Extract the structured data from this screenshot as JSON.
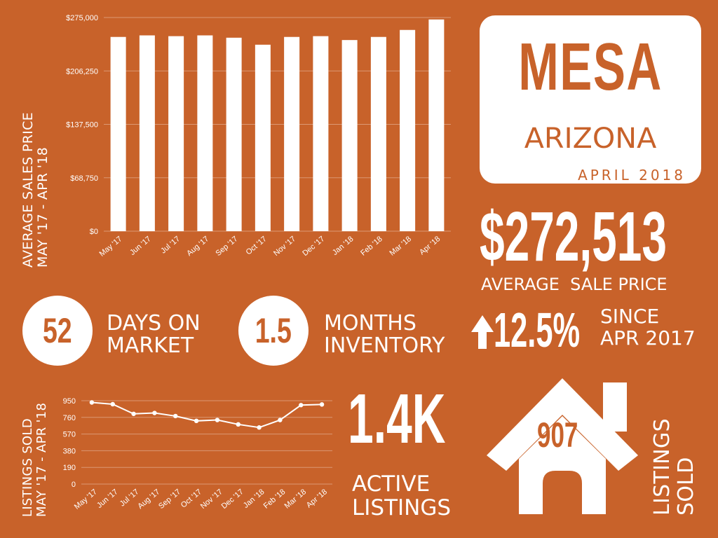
{
  "colors": {
    "background": "#c8622a",
    "foreground": "#ffffff"
  },
  "header": {
    "city": "MESA",
    "state": "ARIZONA",
    "period": "APRIL 2018"
  },
  "avg_price": {
    "value": "$272,513",
    "label": "AVERAGE  SALE PRICE"
  },
  "days_on_market": {
    "value": "52",
    "label_line1": "DAYS ON",
    "label_line2": "MARKET"
  },
  "months_inventory": {
    "value": "1.5",
    "label_line1": "MONTHS",
    "label_line2": "INVENTORY"
  },
  "change": {
    "icon": "arrow-up-icon",
    "value": "12.5%",
    "label_line1": "SINCE",
    "label_line2": "APR 2017"
  },
  "active_listings": {
    "value": "1.4K",
    "label_line1": "ACTIVE",
    "label_line2": "LISTINGS"
  },
  "listings_sold": {
    "icon": "house-icon",
    "value": "907",
    "label_line1": "LISTINGS",
    "label_line2": "SOLD"
  },
  "chart_data": [
    {
      "type": "bar",
      "ylabel_line1": "AVERAGE SALES PRICE",
      "ylabel_line2": "MAY '17 - APR '18",
      "categories": [
        "May '17",
        "Jun '17",
        "Jul '17",
        "Aug '17",
        "Sep '17",
        "Oct '17",
        "Nov '17",
        "Dec '17",
        "Jan '18",
        "Feb '18",
        "Mar '18",
        "Apr '18"
      ],
      "values": [
        250000,
        252000,
        251000,
        252000,
        249000,
        240000,
        250000,
        251000,
        246000,
        250000,
        259000,
        272513
      ],
      "ylim": [
        0,
        275000
      ],
      "yticks": [
        "$0",
        "$68,750",
        "$137,500",
        "$206,250",
        "$275,000"
      ],
      "grid": true
    },
    {
      "type": "line",
      "ylabel_line1": "LISTINGS SOLD",
      "ylabel_line2": "MAY '17 - APR '18",
      "categories": [
        "May '17",
        "Jun '17",
        "Jul '17",
        "Aug '17",
        "Sep '17",
        "Oct '17",
        "Nov '17",
        "Dec '17",
        "Jan '18",
        "Feb '18",
        "Mar '18",
        "Apr '18"
      ],
      "values": [
        930,
        910,
        800,
        810,
        775,
        720,
        730,
        680,
        645,
        730,
        900,
        907
      ],
      "ylim": [
        0,
        950
      ],
      "yticks": [
        "0",
        "190",
        "380",
        "570",
        "760",
        "950"
      ],
      "grid": true
    }
  ]
}
